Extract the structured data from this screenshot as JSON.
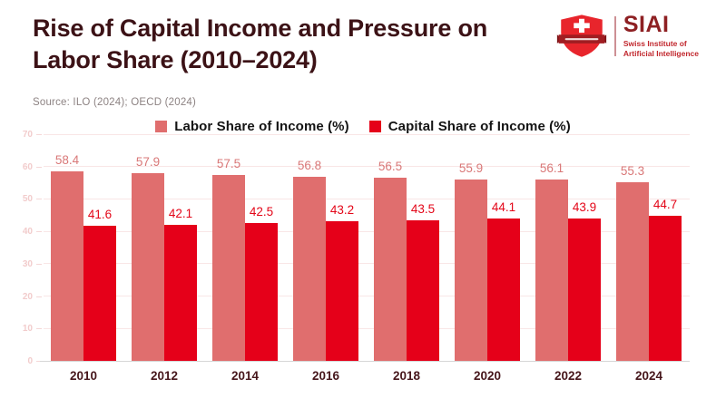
{
  "header": {
    "title_lines": [
      "Rise of Capital Income and Pressure on",
      "Labor Share (2010–2024)"
    ],
    "source": "Source: ILO (2024); OECD (2024)"
  },
  "logo": {
    "acronym": "SIAI",
    "subtitle_lines": [
      "Swiss Institute of",
      "Artificial Intelligence"
    ]
  },
  "colors": {
    "title": "#3c1216",
    "source": "#8d8383",
    "grid": "#f9e6e6",
    "baseline": "#d6d6d6",
    "y_tick_label": "#f2cccc",
    "x_tick_label": "#46161b",
    "legend_text": "#141414",
    "siai_acronym": "#8e2023",
    "siai_subtitle": "#c1272d",
    "shield_red": "#e8252c",
    "ribbon_dark_red": "#a01d22"
  },
  "chart_data": {
    "type": "bar",
    "categories": [
      "2010",
      "2012",
      "2014",
      "2016",
      "2018",
      "2020",
      "2022",
      "2024"
    ],
    "series": [
      {
        "name": "Labor Share of Income (%)",
        "color": "#e06e6e",
        "label_color": "#d97878",
        "values": [
          58.4,
          57.9,
          57.5,
          56.8,
          56.5,
          55.9,
          56.1,
          55.3
        ]
      },
      {
        "name": "Capital Share of Income (%)",
        "color": "#e50019",
        "label_color": "#e30618",
        "values": [
          41.6,
          42.1,
          42.5,
          43.2,
          43.5,
          44.1,
          43.9,
          44.7
        ]
      }
    ],
    "title": "Rise of Capital Income and Pressure on Labor Share (2010–2024)",
    "xlabel": "",
    "ylabel": "",
    "ylim": [
      0,
      70
    ],
    "yticks": [
      0,
      10,
      20,
      30,
      40,
      50,
      60,
      70
    ],
    "grid": true,
    "legend_position": "top",
    "value_labels": true
  }
}
